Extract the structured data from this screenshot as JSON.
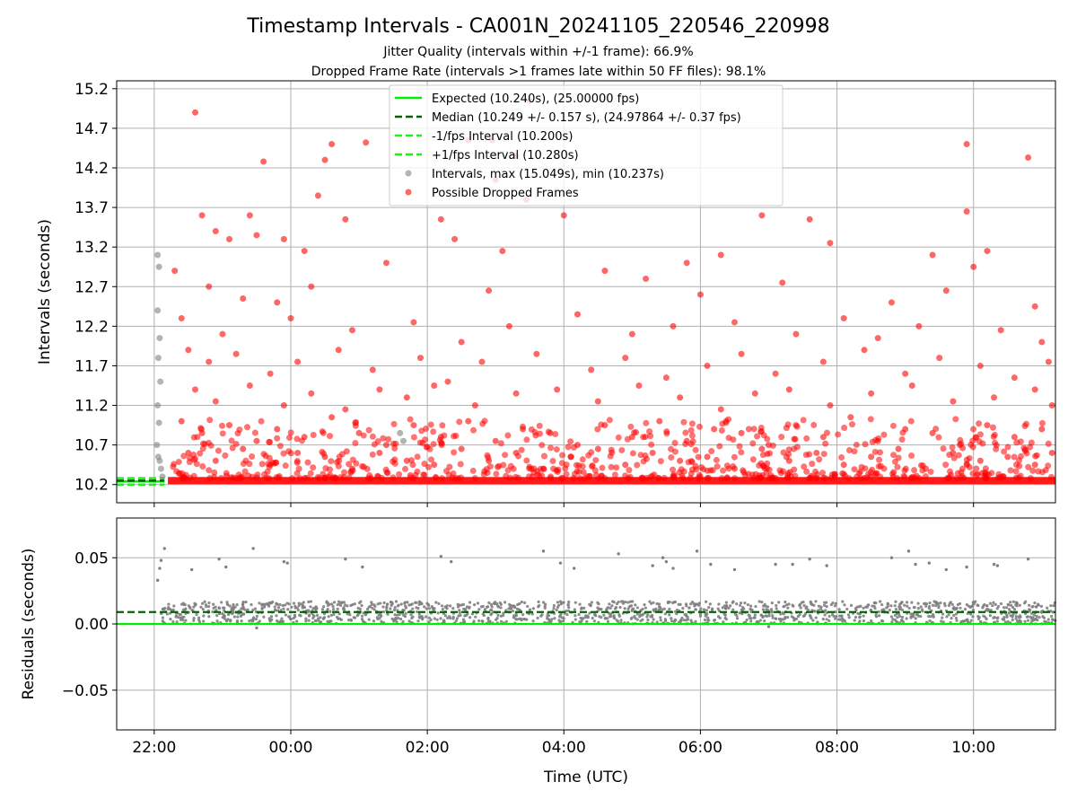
{
  "header": {
    "title": "Timestamp Intervals - CA001N_20241105_220546_220998",
    "subtitle1": "Jitter Quality (intervals within +/-1 frame): 66.9%",
    "subtitle2": "Dropped Frame Rate (intervals >1 frames late within 50 FF files): 98.1%"
  },
  "colors": {
    "expected": "#00ee00",
    "median": "#006400",
    "interval_bounds": "#22ee22",
    "intervals": "#808080",
    "dropped": "#ff0000",
    "grid": "#b0b0b0"
  },
  "chart_data": [
    {
      "type": "scatter",
      "panel": "top",
      "xlabel": "",
      "ylabel": "Intervals (seconds)",
      "xlim": [
        21.45,
        35.2
      ],
      "ylim": [
        9.97,
        15.3
      ],
      "yticks": [
        10.2,
        10.7,
        11.2,
        11.7,
        12.2,
        12.7,
        13.2,
        13.7,
        14.2,
        14.7,
        15.2
      ],
      "ytick_labels": [
        "10.2",
        "10.7",
        "11.2",
        "11.7",
        "12.2",
        "12.7",
        "13.2",
        "13.7",
        "14.2",
        "14.7",
        "15.2"
      ],
      "grid": true,
      "legend_position": "upper-center",
      "reference_lines": [
        {
          "name": "Expected (10.240s), (25.00000 fps)",
          "y": 10.24,
          "style": "solid"
        },
        {
          "name": "Median (10.249 +/- 0.157 s), (24.97864 +/- 0.37 fps)",
          "y": 10.249,
          "style": "dashed"
        },
        {
          "name": "-1/fps Interval (10.200s)",
          "y": 10.2,
          "style": "dashed"
        },
        {
          "name": "+1/fps Interval (10.280s)",
          "y": 10.28,
          "style": "dashed"
        }
      ],
      "series": [
        {
          "name": "Intervals, max (15.049s), min (10.237s)",
          "marker": "gray-dot",
          "points": [
            [
              22.05,
              13.1
            ],
            [
              22.07,
              12.95
            ],
            [
              22.05,
              12.4
            ],
            [
              22.08,
              12.05
            ],
            [
              22.06,
              11.8
            ],
            [
              22.09,
              11.5
            ],
            [
              22.05,
              11.2
            ],
            [
              22.07,
              10.98
            ],
            [
              22.04,
              10.7
            ],
            [
              22.06,
              10.55
            ],
            [
              22.08,
              10.5
            ],
            [
              22.1,
              10.4
            ],
            [
              22.12,
              10.3
            ],
            [
              25.6,
              10.85
            ],
            [
              25.65,
              10.75
            ]
          ]
        },
        {
          "name": "Possible Dropped Frames",
          "marker": "red-dot",
          "points": [
            [
              22.6,
              14.9
            ],
            [
              24.6,
              14.5
            ],
            [
              24.5,
              14.3
            ],
            [
              23.6,
              14.28
            ],
            [
              25.1,
              14.52
            ],
            [
              27.5,
              15.05
            ],
            [
              26.6,
              14.55
            ],
            [
              27.3,
              14.35
            ],
            [
              26.95,
              14.55
            ],
            [
              33.9,
              14.5
            ],
            [
              34.8,
              14.33
            ],
            [
              27.0,
              14.05
            ],
            [
              22.7,
              13.6
            ],
            [
              23.4,
              13.6
            ],
            [
              24.8,
              13.55
            ],
            [
              26.2,
              13.55
            ],
            [
              28.0,
              13.6
            ],
            [
              30.9,
              13.6
            ],
            [
              31.6,
              13.55
            ],
            [
              33.9,
              13.65
            ],
            [
              24.4,
              13.85
            ],
            [
              27.45,
              13.8
            ],
            [
              22.9,
              13.4
            ],
            [
              23.1,
              13.3
            ],
            [
              23.5,
              13.35
            ],
            [
              23.9,
              13.3
            ],
            [
              24.2,
              13.15
            ],
            [
              25.4,
              13.0
            ],
            [
              26.4,
              13.3
            ],
            [
              27.1,
              13.15
            ],
            [
              29.8,
              13.0
            ],
            [
              30.3,
              13.1
            ],
            [
              31.9,
              13.25
            ],
            [
              33.4,
              13.1
            ],
            [
              34.2,
              13.15
            ],
            [
              22.3,
              12.9
            ],
            [
              22.8,
              12.7
            ],
            [
              23.3,
              12.55
            ],
            [
              23.8,
              12.5
            ],
            [
              24.3,
              12.7
            ],
            [
              26.9,
              12.65
            ],
            [
              28.6,
              12.9
            ],
            [
              29.2,
              12.8
            ],
            [
              30.0,
              12.6
            ],
            [
              31.2,
              12.75
            ],
            [
              32.8,
              12.5
            ],
            [
              33.6,
              12.65
            ],
            [
              34.0,
              12.95
            ],
            [
              34.9,
              12.45
            ],
            [
              22.4,
              12.3
            ],
            [
              23.0,
              12.1
            ],
            [
              24.0,
              12.3
            ],
            [
              24.9,
              12.15
            ],
            [
              25.8,
              12.25
            ],
            [
              26.5,
              12.0
            ],
            [
              27.2,
              12.2
            ],
            [
              28.2,
              12.35
            ],
            [
              29.0,
              12.1
            ],
            [
              29.6,
              12.2
            ],
            [
              30.5,
              12.25
            ],
            [
              31.4,
              12.1
            ],
            [
              32.1,
              12.3
            ],
            [
              32.6,
              12.05
            ],
            [
              33.2,
              12.2
            ],
            [
              34.4,
              12.15
            ],
            [
              35.0,
              12.0
            ],
            [
              22.5,
              11.9
            ],
            [
              22.8,
              11.75
            ],
            [
              23.2,
              11.85
            ],
            [
              23.7,
              11.6
            ],
            [
              24.1,
              11.75
            ],
            [
              24.7,
              11.9
            ],
            [
              25.2,
              11.65
            ],
            [
              25.9,
              11.8
            ],
            [
              26.3,
              11.5
            ],
            [
              26.8,
              11.75
            ],
            [
              27.6,
              11.85
            ],
            [
              28.4,
              11.65
            ],
            [
              28.9,
              11.8
            ],
            [
              29.5,
              11.55
            ],
            [
              30.1,
              11.7
            ],
            [
              30.6,
              11.85
            ],
            [
              31.1,
              11.6
            ],
            [
              31.8,
              11.75
            ],
            [
              32.4,
              11.9
            ],
            [
              33.0,
              11.6
            ],
            [
              33.5,
              11.8
            ],
            [
              34.1,
              11.7
            ],
            [
              34.6,
              11.55
            ],
            [
              35.1,
              11.75
            ],
            [
              22.6,
              11.4
            ],
            [
              22.9,
              11.25
            ],
            [
              23.4,
              11.45
            ],
            [
              23.9,
              11.2
            ],
            [
              24.3,
              11.35
            ],
            [
              24.8,
              11.15
            ],
            [
              25.3,
              11.4
            ],
            [
              25.7,
              11.3
            ],
            [
              26.1,
              11.45
            ],
            [
              26.7,
              11.2
            ],
            [
              27.3,
              11.35
            ],
            [
              27.9,
              11.4
            ],
            [
              28.5,
              11.25
            ],
            [
              29.1,
              11.45
            ],
            [
              29.7,
              11.3
            ],
            [
              30.3,
              11.15
            ],
            [
              30.8,
              11.35
            ],
            [
              31.3,
              11.4
            ],
            [
              31.9,
              11.2
            ],
            [
              32.5,
              11.35
            ],
            [
              33.1,
              11.45
            ],
            [
              33.7,
              11.25
            ],
            [
              34.3,
              11.3
            ],
            [
              34.9,
              11.4
            ],
            [
              35.15,
              11.2
            ],
            [
              22.4,
              11.0
            ],
            [
              22.7,
              10.85
            ],
            [
              23.1,
              10.95
            ],
            [
              23.5,
              10.75
            ],
            [
              23.8,
              10.9
            ],
            [
              24.2,
              10.8
            ],
            [
              24.6,
              11.05
            ],
            [
              25.0,
              10.85
            ],
            [
              25.4,
              10.7
            ],
            [
              25.8,
              10.95
            ],
            [
              26.2,
              10.8
            ],
            [
              26.6,
              11.0
            ],
            [
              27.0,
              10.75
            ],
            [
              27.4,
              10.9
            ],
            [
              27.8,
              10.85
            ],
            [
              28.2,
              10.7
            ],
            [
              28.6,
              10.95
            ],
            [
              29.0,
              10.8
            ],
            [
              29.4,
              11.0
            ],
            [
              29.8,
              10.75
            ],
            [
              30.2,
              10.9
            ],
            [
              30.6,
              10.85
            ],
            [
              31.0,
              10.7
            ],
            [
              31.4,
              10.95
            ],
            [
              31.8,
              10.8
            ],
            [
              32.2,
              11.05
            ],
            [
              32.6,
              10.75
            ],
            [
              33.0,
              10.9
            ],
            [
              33.4,
              10.85
            ],
            [
              33.8,
              10.7
            ],
            [
              34.2,
              10.95
            ],
            [
              34.6,
              10.8
            ],
            [
              35.0,
              10.9
            ],
            [
              22.5,
              10.6
            ],
            [
              22.9,
              10.5
            ],
            [
              23.3,
              10.65
            ],
            [
              23.7,
              10.45
            ],
            [
              24.1,
              10.6
            ],
            [
              24.5,
              10.55
            ],
            [
              24.9,
              10.4
            ],
            [
              25.3,
              10.6
            ],
            [
              25.7,
              10.5
            ],
            [
              26.1,
              10.45
            ],
            [
              26.5,
              10.65
            ],
            [
              26.9,
              10.5
            ],
            [
              27.3,
              10.6
            ],
            [
              27.7,
              10.4
            ],
            [
              28.1,
              10.55
            ],
            [
              28.5,
              10.65
            ],
            [
              28.9,
              10.45
            ],
            [
              29.3,
              10.6
            ],
            [
              29.7,
              10.5
            ],
            [
              30.1,
              10.55
            ],
            [
              30.5,
              10.4
            ],
            [
              30.9,
              10.65
            ],
            [
              31.3,
              10.5
            ],
            [
              31.7,
              10.6
            ],
            [
              32.1,
              10.45
            ],
            [
              32.5,
              10.55
            ],
            [
              32.9,
              10.65
            ],
            [
              33.3,
              10.4
            ],
            [
              33.7,
              10.6
            ],
            [
              34.1,
              10.5
            ],
            [
              34.5,
              10.55
            ],
            [
              34.9,
              10.45
            ],
            [
              35.15,
              10.6
            ]
          ]
        }
      ],
      "baseline_band": {
        "x_start": 22.2,
        "x_end": 35.2,
        "y": 10.25,
        "label": "dense red interval points near 10.24 s"
      }
    },
    {
      "type": "scatter",
      "panel": "bottom",
      "xlabel": "Time (UTC)",
      "ylabel": "Residuals (seconds)",
      "xlim": [
        21.45,
        35.2
      ],
      "ylim": [
        -0.08,
        0.08
      ],
      "yticks": [
        -0.05,
        0.0,
        0.05
      ],
      "ytick_labels": [
        "−0.05",
        "0.00",
        "0.05"
      ],
      "xticks": [
        22,
        24,
        26,
        28,
        30,
        32,
        34
      ],
      "xtick_labels": [
        "22:00",
        "00:00",
        "02:00",
        "04:00",
        "06:00",
        "08:00",
        "10:00"
      ],
      "grid": true,
      "reference_lines": [
        {
          "name": "Expected residual",
          "y": 0.0,
          "style": "solid"
        },
        {
          "name": "Median residual",
          "y": 0.009,
          "style": "dashed"
        }
      ],
      "series": [
        {
          "name": "",
          "marker": "gray-dot",
          "points": [
            [
              22.15,
              0.057
            ],
            [
              22.1,
              0.048
            ],
            [
              22.08,
              0.042
            ],
            [
              22.05,
              0.033
            ],
            [
              22.55,
              0.041
            ],
            [
              22.95,
              0.049
            ],
            [
              23.05,
              0.043
            ],
            [
              23.45,
              0.057
            ],
            [
              23.9,
              0.047
            ],
            [
              23.95,
              0.046
            ],
            [
              24.8,
              0.049
            ],
            [
              25.05,
              0.043
            ],
            [
              26.2,
              0.051
            ],
            [
              26.35,
              0.047
            ],
            [
              27.7,
              0.055
            ],
            [
              27.95,
              0.046
            ],
            [
              28.15,
              0.042
            ],
            [
              28.8,
              0.053
            ],
            [
              29.3,
              0.044
            ],
            [
              29.45,
              0.05
            ],
            [
              29.5,
              0.047
            ],
            [
              29.6,
              0.042
            ],
            [
              29.95,
              0.055
            ],
            [
              30.15,
              0.045
            ],
            [
              30.5,
              0.041
            ],
            [
              31.1,
              0.045
            ],
            [
              31.35,
              0.045
            ],
            [
              31.6,
              0.049
            ],
            [
              31.85,
              0.044
            ],
            [
              32.8,
              0.05
            ],
            [
              33.05,
              0.055
            ],
            [
              33.15,
              0.045
            ],
            [
              33.35,
              0.046
            ],
            [
              33.6,
              0.041
            ],
            [
              33.9,
              0.043
            ],
            [
              34.3,
              0.045
            ],
            [
              34.35,
              0.044
            ],
            [
              34.8,
              0.049
            ],
            [
              23.5,
              -0.003
            ],
            [
              31.0,
              -0.002
            ]
          ]
        }
      ],
      "residual_band": {
        "x_start": 22.1,
        "x_end": 35.2,
        "y_min": 0.0,
        "y_max": 0.017
      }
    }
  ]
}
